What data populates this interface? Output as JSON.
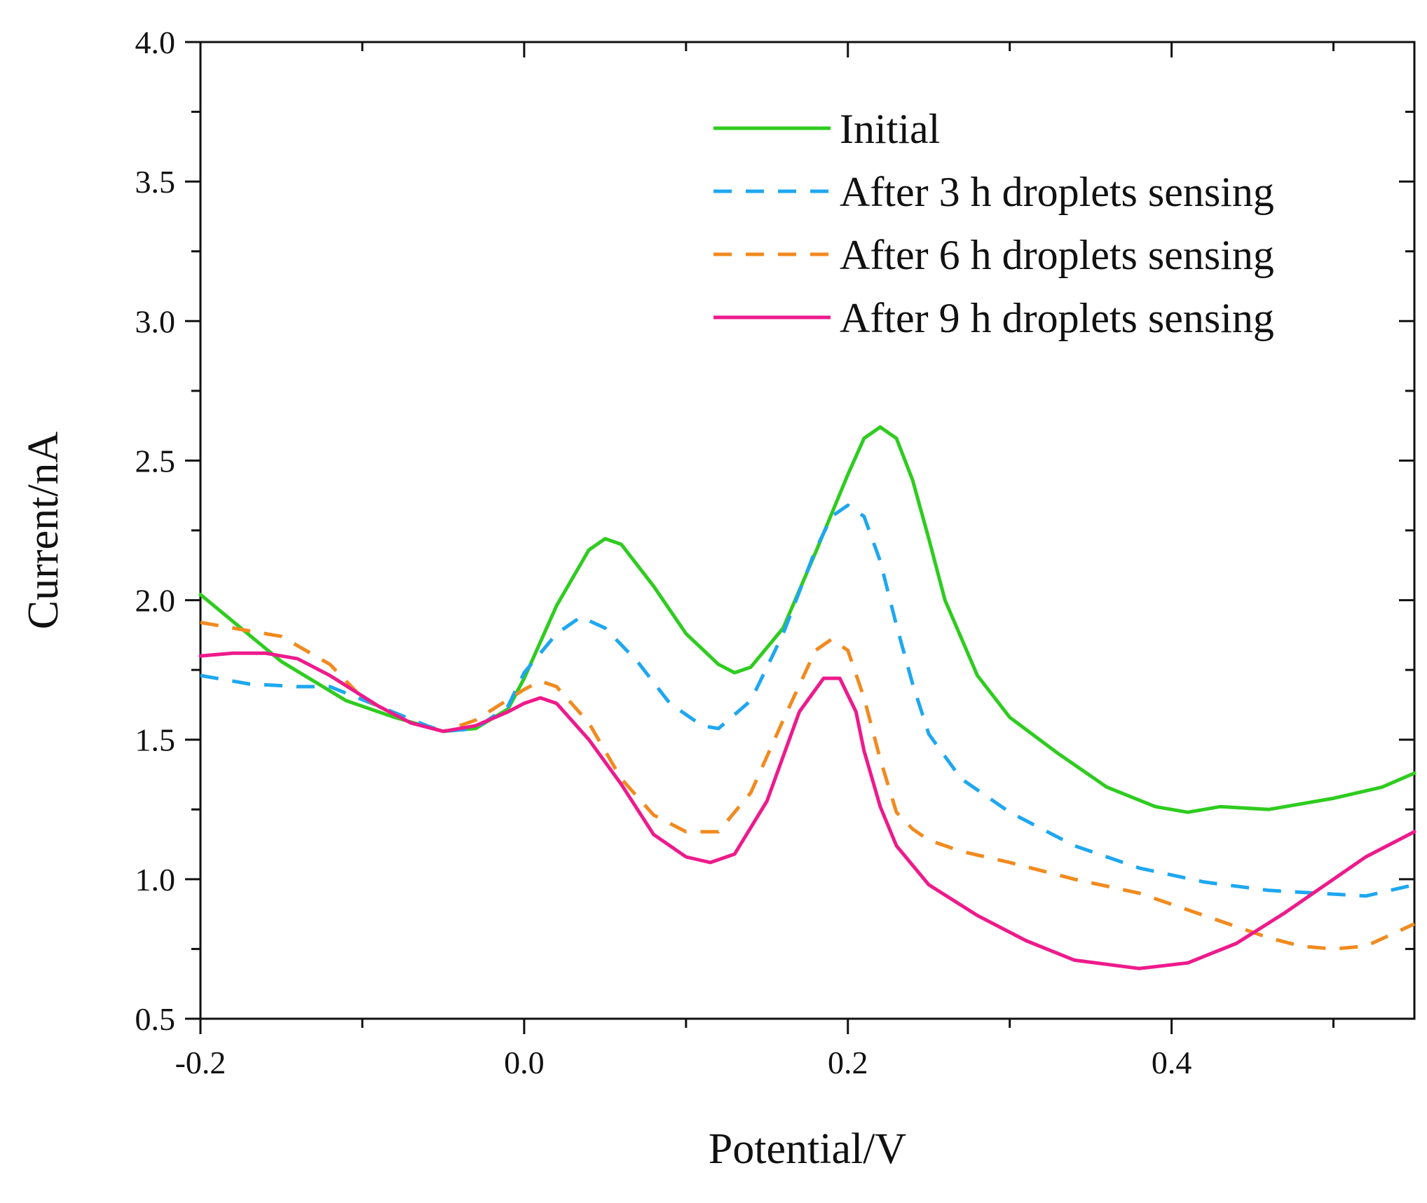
{
  "chart_data": {
    "type": "line",
    "title": "",
    "xlabel": "Potential/V",
    "ylabel": "Current/nA",
    "xlim": [
      -0.2,
      0.55
    ],
    "ylim": [
      0.5,
      4.0
    ],
    "xticks": [
      -0.2,
      0.0,
      0.2,
      0.4
    ],
    "xtick_labels": [
      "-0.2",
      "0.0",
      "0.2",
      "0.4"
    ],
    "yticks": [
      0.5,
      1.0,
      1.5,
      2.0,
      2.5,
      3.0,
      3.5,
      4.0
    ],
    "ytick_labels": [
      "0.5",
      "1.0",
      "1.5",
      "2.0",
      "2.5",
      "3.0",
      "3.5",
      "4.0"
    ],
    "grid": false,
    "legend_position": "top-right",
    "series": [
      {
        "name": "Initial",
        "color": "#2ecc1f",
        "dashed": false,
        "x": [
          -0.2,
          -0.15,
          -0.11,
          -0.08,
          -0.05,
          -0.03,
          -0.01,
          0.0,
          0.02,
          0.04,
          0.05,
          0.06,
          0.08,
          0.1,
          0.12,
          0.13,
          0.14,
          0.16,
          0.18,
          0.2,
          0.21,
          0.22,
          0.23,
          0.24,
          0.25,
          0.26,
          0.28,
          0.3,
          0.33,
          0.36,
          0.39,
          0.41,
          0.43,
          0.46,
          0.5,
          0.53,
          0.55
        ],
        "y": [
          2.02,
          1.78,
          1.64,
          1.58,
          1.53,
          1.54,
          1.61,
          1.72,
          1.98,
          2.18,
          2.22,
          2.2,
          2.05,
          1.88,
          1.77,
          1.74,
          1.76,
          1.9,
          2.17,
          2.45,
          2.58,
          2.62,
          2.58,
          2.43,
          2.22,
          2.0,
          1.73,
          1.58,
          1.45,
          1.33,
          1.26,
          1.24,
          1.26,
          1.25,
          1.29,
          1.33,
          1.38
        ]
      },
      {
        "name": "After 3 h droplets sensing",
        "color": "#1ea7f0",
        "dashed": true,
        "x": [
          -0.2,
          -0.17,
          -0.14,
          -0.12,
          -0.09,
          -0.06,
          -0.05,
          -0.03,
          -0.01,
          0.0,
          0.02,
          0.035,
          0.05,
          0.07,
          0.09,
          0.11,
          0.12,
          0.14,
          0.16,
          0.18,
          0.19,
          0.2,
          0.21,
          0.22,
          0.23,
          0.24,
          0.25,
          0.27,
          0.3,
          0.34,
          0.38,
          0.42,
          0.46,
          0.49,
          0.52,
          0.55
        ],
        "y": [
          1.73,
          1.7,
          1.69,
          1.69,
          1.62,
          1.55,
          1.53,
          1.54,
          1.62,
          1.74,
          1.88,
          1.94,
          1.9,
          1.78,
          1.63,
          1.55,
          1.54,
          1.64,
          1.88,
          2.18,
          2.3,
          2.34,
          2.3,
          2.14,
          1.91,
          1.7,
          1.52,
          1.36,
          1.24,
          1.12,
          1.04,
          0.99,
          0.96,
          0.95,
          0.94,
          0.98
        ]
      },
      {
        "name": "After 6 h droplets sensing",
        "color": "#f28a1e",
        "dashed": true,
        "x": [
          -0.2,
          -0.17,
          -0.15,
          -0.12,
          -0.1,
          -0.07,
          -0.05,
          -0.03,
          0.0,
          0.01,
          0.02,
          0.04,
          0.06,
          0.08,
          0.1,
          0.12,
          0.14,
          0.16,
          0.18,
          0.19,
          0.2,
          0.21,
          0.22,
          0.23,
          0.24,
          0.25,
          0.27,
          0.3,
          0.34,
          0.38,
          0.42,
          0.46,
          0.48,
          0.5,
          0.52,
          0.55
        ],
        "y": [
          1.92,
          1.89,
          1.87,
          1.77,
          1.65,
          1.56,
          1.53,
          1.57,
          1.68,
          1.71,
          1.69,
          1.56,
          1.36,
          1.23,
          1.17,
          1.17,
          1.31,
          1.57,
          1.82,
          1.86,
          1.82,
          1.65,
          1.43,
          1.24,
          1.18,
          1.14,
          1.1,
          1.06,
          1.0,
          0.95,
          0.87,
          0.79,
          0.76,
          0.75,
          0.76,
          0.84
        ]
      },
      {
        "name": "After 9 h droplets sensing",
        "color": "#ee1a8c",
        "dashed": false,
        "x": [
          -0.2,
          -0.18,
          -0.16,
          -0.14,
          -0.12,
          -0.09,
          -0.07,
          -0.05,
          -0.03,
          -0.01,
          0.0,
          0.01,
          0.02,
          0.04,
          0.06,
          0.08,
          0.1,
          0.115,
          0.13,
          0.15,
          0.17,
          0.185,
          0.195,
          0.205,
          0.21,
          0.22,
          0.23,
          0.25,
          0.28,
          0.31,
          0.34,
          0.38,
          0.41,
          0.44,
          0.47,
          0.5,
          0.52,
          0.55
        ],
        "y": [
          1.8,
          1.81,
          1.81,
          1.79,
          1.73,
          1.62,
          1.56,
          1.53,
          1.55,
          1.6,
          1.63,
          1.65,
          1.63,
          1.5,
          1.34,
          1.16,
          1.08,
          1.06,
          1.09,
          1.28,
          1.6,
          1.72,
          1.72,
          1.6,
          1.46,
          1.26,
          1.12,
          0.98,
          0.87,
          0.78,
          0.71,
          0.68,
          0.7,
          0.77,
          0.88,
          1.0,
          1.08,
          1.17
        ]
      }
    ]
  }
}
